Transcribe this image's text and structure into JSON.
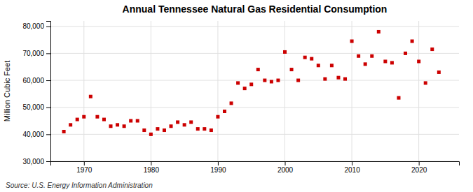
{
  "chart_data": {
    "type": "scatter",
    "title": "Annual Tennessee Natural Gas Residential Consumption",
    "ylabel": "Million Cubic Feet",
    "source": "Source: U.S. Energy Information Administration",
    "color": "#cc0000",
    "marker": "square",
    "grid": true,
    "xlim": [
      1965,
      2026
    ],
    "xticks": [
      1970,
      1980,
      1990,
      2000,
      2010,
      2020
    ],
    "ylim": [
      30000,
      82000
    ],
    "yticks": [
      {
        "value": 30000,
        "label": "30,000"
      },
      {
        "value": 40000,
        "label": "40,000"
      },
      {
        "value": 50000,
        "label": "50,000"
      },
      {
        "value": 60000,
        "label": "60,000"
      },
      {
        "value": 70000,
        "label": "70,000"
      },
      {
        "value": 80000,
        "label": "80,000"
      }
    ],
    "x": [
      1967,
      1968,
      1969,
      1970,
      1971,
      1972,
      1973,
      1974,
      1975,
      1976,
      1977,
      1978,
      1979,
      1980,
      1981,
      1982,
      1983,
      1984,
      1985,
      1986,
      1987,
      1988,
      1989,
      1990,
      1991,
      1992,
      1993,
      1994,
      1995,
      1996,
      1997,
      1998,
      1999,
      2000,
      2001,
      2002,
      2003,
      2004,
      2005,
      2006,
      2007,
      2008,
      2009,
      2010,
      2011,
      2012,
      2013,
      2014,
      2015,
      2016,
      2017,
      2018,
      2019,
      2020,
      2021,
      2022,
      2023
    ],
    "values": [
      41000,
      43500,
      45500,
      46500,
      54000,
      46500,
      45500,
      43000,
      43500,
      43000,
      45000,
      45000,
      41500,
      40000,
      42000,
      41500,
      43000,
      44500,
      43500,
      44500,
      42000,
      42000,
      41500,
      46500,
      48500,
      51500,
      59000,
      57000,
      58500,
      64000,
      60000,
      59500,
      60000,
      70500,
      64000,
      60000,
      68500,
      68000,
      65500,
      60500,
      65500,
      61000,
      60500,
      74500,
      69000,
      66000,
      69000,
      78000,
      67000,
      66500,
      53500,
      70000,
      74500,
      67000,
      59000,
      71500,
      63000
    ]
  }
}
